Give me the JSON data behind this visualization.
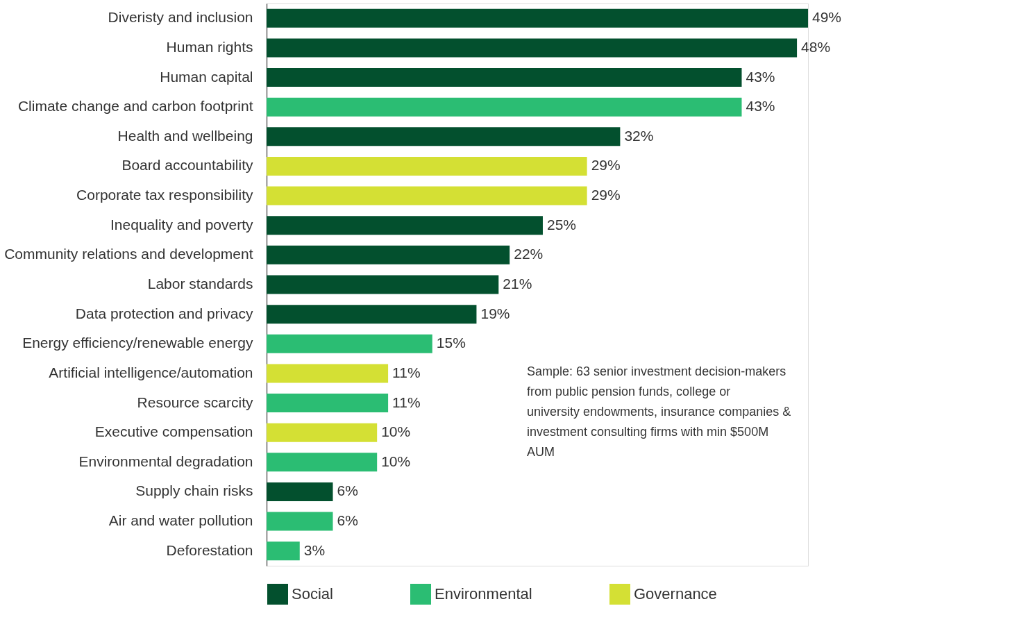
{
  "chart_data": {
    "type": "bar",
    "orientation": "horizontal",
    "legend": "bottom",
    "categories": [
      "Diveristy and inclusion",
      "Human rights",
      "Human capital",
      "Climate change and carbon footprint",
      "Health and wellbeing",
      "Board accountability",
      "Corporate tax responsibility",
      "Inequality and poverty",
      "Community relations and development",
      "Labor standards",
      "Data protection and privacy",
      "Energy efficiency/renewable energy",
      "Artificial intelligence/automation",
      "Resource scarcity",
      "Executive compensation",
      "Environmental degradation",
      "Supply chain risks",
      "Air and water pollution",
      "Deforestation"
    ],
    "series": [
      {
        "name": "Social",
        "color": "#03502e",
        "values": [
          49,
          48,
          43,
          null,
          32,
          null,
          null,
          25,
          22,
          21,
          19,
          null,
          null,
          null,
          null,
          null,
          6,
          null,
          null
        ],
        "value_labels": [
          "49%",
          "48%",
          "43%",
          null,
          "32%",
          null,
          null,
          "25%",
          "22%",
          "21%",
          "19%",
          null,
          null,
          null,
          null,
          null,
          "6%",
          null,
          null
        ]
      },
      {
        "name": "Environmental",
        "color": "#2bbd73",
        "values": [
          null,
          null,
          null,
          43,
          null,
          null,
          null,
          null,
          null,
          null,
          null,
          15,
          null,
          11,
          null,
          10,
          null,
          6,
          3
        ],
        "value_labels": [
          null,
          null,
          null,
          "43%",
          null,
          null,
          null,
          null,
          null,
          null,
          null,
          "15%",
          null,
          "11%",
          null,
          "10%",
          null,
          "6%",
          "3%"
        ]
      },
      {
        "name": "Governance",
        "color": "#d4e034",
        "values": [
          null,
          null,
          null,
          null,
          null,
          29,
          29,
          null,
          null,
          null,
          null,
          null,
          11,
          null,
          10,
          null,
          null,
          null,
          null
        ],
        "value_labels": [
          null,
          null,
          null,
          null,
          null,
          "29%",
          "29%",
          null,
          null,
          null,
          null,
          null,
          "11%",
          null,
          "10%",
          null,
          null,
          null,
          null
        ]
      }
    ],
    "annotations": [
      "Sample: 63 senior investment decision-makers from public pension funds, college or university endowments, insurance companies & investment consulting firms with min $500M AUM"
    ]
  }
}
